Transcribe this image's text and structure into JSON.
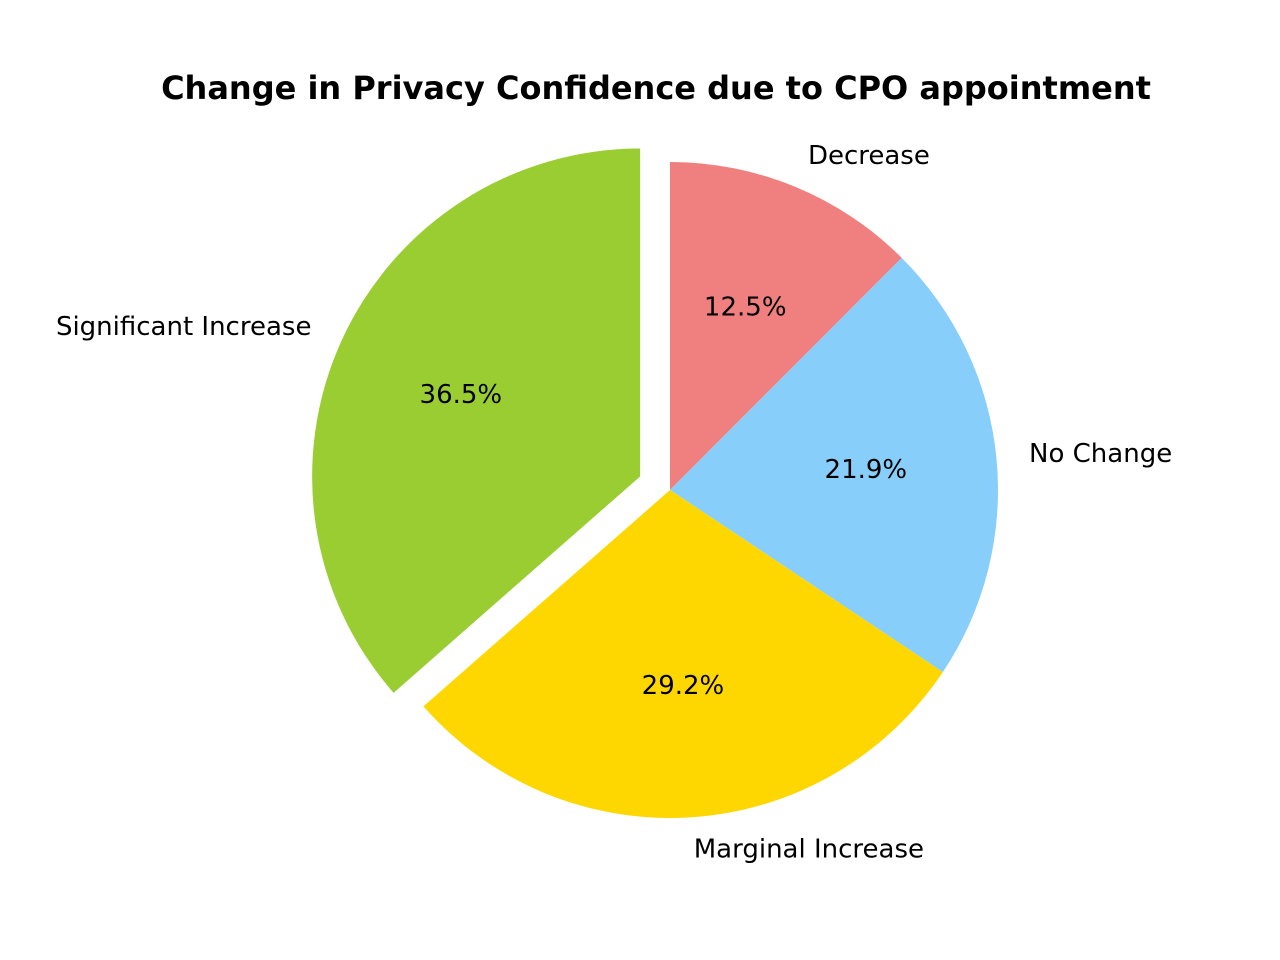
{
  "chart_data": {
    "type": "pie",
    "title": "Change in Privacy Confidence due to CPO appointment",
    "start_angle_deg": 90,
    "direction": "clockwise",
    "slices": [
      {
        "label": "Decrease",
        "value": 12.5,
        "pct_label": "12.5%",
        "color": "#F08080",
        "explode": 0
      },
      {
        "label": "No Change",
        "value": 21.9,
        "pct_label": "21.9%",
        "color": "#87CEFA",
        "explode": 0
      },
      {
        "label": "Marginal Increase",
        "value": 29.2,
        "pct_label": "29.2%",
        "color": "#FFD700",
        "explode": 0
      },
      {
        "label": "Significant Increase",
        "value": 36.5,
        "pct_label": "36.5%",
        "color": "#9ACD32",
        "explode": 0.1
      }
    ]
  }
}
